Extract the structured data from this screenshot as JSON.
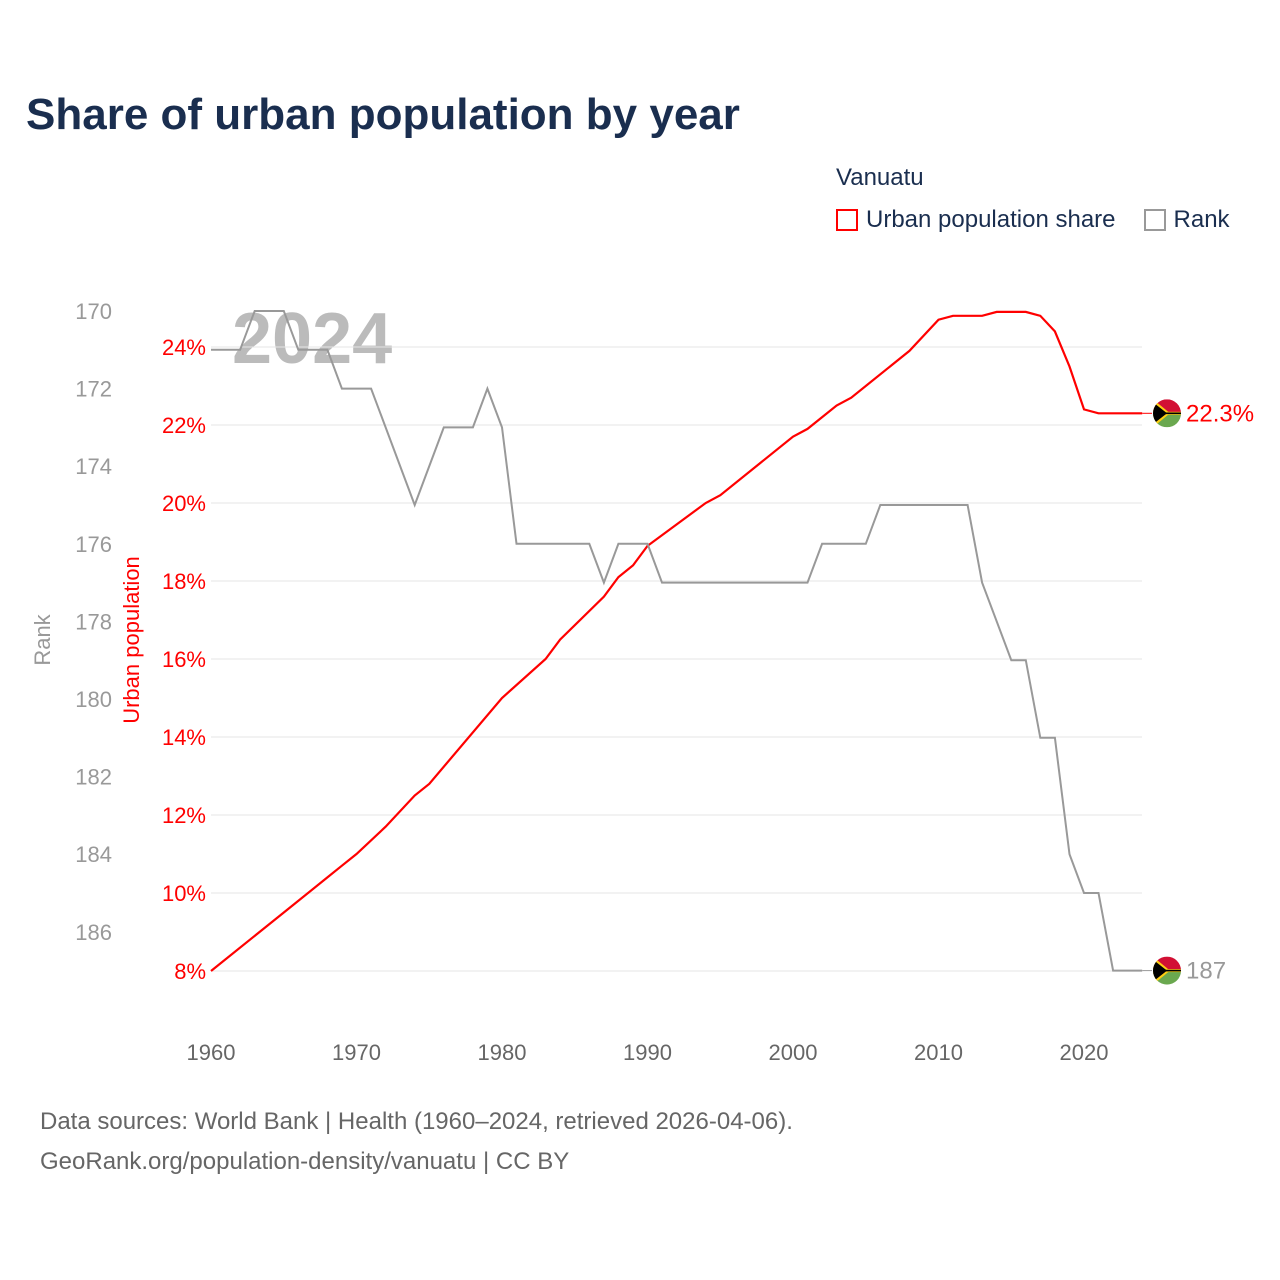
{
  "title": "Share of urban population by year",
  "legend": {
    "title": "Vanuatu",
    "items": [
      {
        "label": "Urban population share",
        "color": "#ff0000"
      },
      {
        "label": "Rank",
        "color": "#999999"
      }
    ]
  },
  "watermark_year": "2024",
  "footer": {
    "line1": "Data sources: World Bank | Health (1960–2024, retrieved 2026-04-06).",
    "line2": "GeoRank.org/population-density/vanuatu | CC BY"
  },
  "chart_data": {
    "type": "line",
    "title": "Share of urban population by year",
    "xlabel": "",
    "ylabel_left_outer": "Rank",
    "ylabel_left_inner": "Urban population",
    "x_ticks": [
      "1960",
      "1970",
      "1980",
      "1990",
      "2000",
      "2010",
      "2020"
    ],
    "xlim": [
      1960,
      2024
    ],
    "urban_ticks": [
      "8%",
      "10%",
      "12%",
      "14%",
      "16%",
      "18%",
      "20%",
      "22%",
      "24%"
    ],
    "urban_ylim": [
      8,
      25
    ],
    "rank_ticks": [
      "170",
      "172",
      "174",
      "176",
      "178",
      "180",
      "182",
      "184",
      "186"
    ],
    "rank_ylim": [
      170,
      187
    ],
    "end_labels": {
      "urban": "22.3%",
      "rank": "187"
    },
    "series": [
      {
        "name": "Urban population share",
        "color": "#ff0000",
        "points": [
          [
            1960,
            8.0
          ],
          [
            1965,
            9.5
          ],
          [
            1968,
            10.4
          ],
          [
            1969,
            10.7
          ],
          [
            1970,
            11.0
          ],
          [
            1972,
            11.7
          ],
          [
            1974,
            12.5
          ],
          [
            1975,
            12.8
          ],
          [
            1980,
            15.0
          ],
          [
            1983,
            16.0
          ],
          [
            1984,
            16.5
          ],
          [
            1987,
            17.6
          ],
          [
            1988,
            18.1
          ],
          [
            1989,
            18.4
          ],
          [
            1990,
            18.9
          ],
          [
            1994,
            20.0
          ],
          [
            1995,
            20.2
          ],
          [
            2000,
            21.7
          ],
          [
            2001,
            21.9
          ],
          [
            2003,
            22.5
          ],
          [
            2004,
            22.7
          ],
          [
            2008,
            23.9
          ],
          [
            2010,
            24.7
          ],
          [
            2011,
            24.8
          ],
          [
            2013,
            24.8
          ],
          [
            2014,
            24.9
          ],
          [
            2016,
            24.9
          ],
          [
            2017,
            24.8
          ],
          [
            2018,
            24.4
          ],
          [
            2019,
            23.5
          ],
          [
            2020,
            22.4
          ],
          [
            2021,
            22.3
          ],
          [
            2024,
            22.3
          ]
        ]
      },
      {
        "name": "Rank",
        "color": "#999999",
        "points": [
          [
            1960,
            171
          ],
          [
            1962,
            171
          ],
          [
            1963,
            170
          ],
          [
            1965,
            170
          ],
          [
            1966,
            171
          ],
          [
            1968,
            171
          ],
          [
            1969,
            172
          ],
          [
            1971,
            172
          ],
          [
            1974,
            175
          ],
          [
            1976,
            173
          ],
          [
            1978,
            173
          ],
          [
            1979,
            172
          ],
          [
            1980,
            173
          ],
          [
            1981,
            176
          ],
          [
            1986,
            176
          ],
          [
            1987,
            177
          ],
          [
            1988,
            176
          ],
          [
            1990,
            176
          ],
          [
            1991,
            177
          ],
          [
            2001,
            177
          ],
          [
            2002,
            176
          ],
          [
            2005,
            176
          ],
          [
            2006,
            175
          ],
          [
            2012,
            175
          ],
          [
            2013,
            177
          ],
          [
            2015,
            179
          ],
          [
            2016,
            179
          ],
          [
            2017,
            181
          ],
          [
            2018,
            181
          ],
          [
            2019,
            184
          ],
          [
            2020,
            185
          ],
          [
            2021,
            185
          ],
          [
            2022,
            187
          ],
          [
            2024,
            187
          ]
        ]
      }
    ]
  }
}
